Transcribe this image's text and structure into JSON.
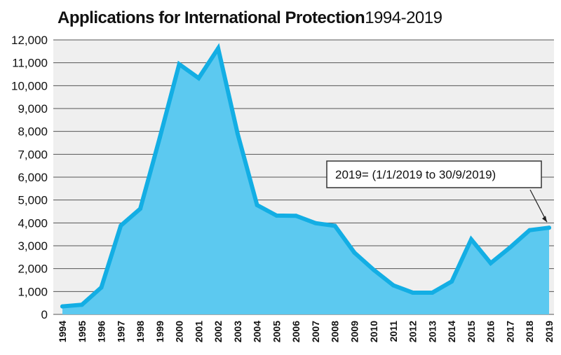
{
  "title": {
    "main": "Applications for International Protection",
    "years": "1994-2019"
  },
  "chart_data": {
    "type": "area",
    "title": "Applications for International Protection 1994-2019",
    "xlabel": "",
    "ylabel": "",
    "ylim": [
      0,
      12000
    ],
    "y_ticks": [
      0,
      1000,
      2000,
      3000,
      4000,
      5000,
      6000,
      7000,
      8000,
      9000,
      10000,
      11000,
      12000
    ],
    "y_tick_labels": [
      "0",
      "1,000",
      "2,000",
      "3,000",
      "4,000",
      "5,000",
      "6,000",
      "7,000",
      "8,000",
      "9,000",
      "10,000",
      "11,000",
      "12,000"
    ],
    "x": [
      "1994",
      "1995",
      "1996",
      "1997",
      "1998",
      "1999",
      "2000",
      "2001",
      "2002",
      "2003",
      "2004",
      "2005",
      "2006",
      "2007",
      "2008",
      "2009",
      "2010",
      "2011",
      "2012",
      "2013",
      "2014",
      "2015",
      "2016",
      "2017",
      "2018",
      "2019"
    ],
    "values": [
      350,
      420,
      1180,
      3880,
      4620,
      7720,
      10940,
      10330,
      11630,
      7900,
      4780,
      4320,
      4310,
      3990,
      3870,
      2700,
      1940,
      1270,
      950,
      950,
      1440,
      3280,
      2240,
      2930,
      3680,
      3790
    ],
    "grid": true,
    "line_color": "#13aee4",
    "fill_color": "#5cc9f0",
    "plot_background": "#efefef",
    "annotation": {
      "text": "2019= (1/1/2019 to 30/9/2019)",
      "target_x": "2019"
    }
  }
}
